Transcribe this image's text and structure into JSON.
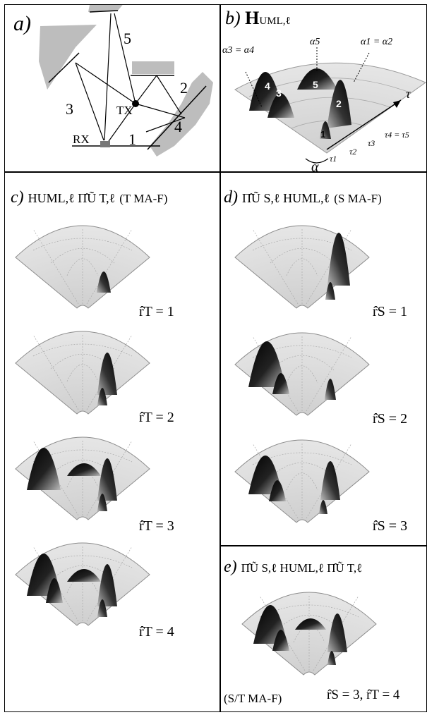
{
  "panel_a": {
    "tag": "a)",
    "tx_label": "TX",
    "rx_label": "RX",
    "path_labels": [
      "1",
      "2",
      "3",
      "4",
      "5"
    ]
  },
  "panel_b": {
    "tag": "b)",
    "title_main": "H",
    "title_sub": "UML,ℓ",
    "alpha34": "α3 = α4",
    "alpha5": "α5",
    "alpha12": "α1 = α2",
    "peak_numbers": [
      "1",
      "2",
      "3",
      "4",
      "5"
    ],
    "tau_axis": "τ",
    "alpha_axis": "α",
    "tau_ticks": [
      "τ1",
      "τ2",
      "τ3",
      "τ4 = τ5"
    ]
  },
  "panel_c": {
    "tag": "c)",
    "title": "HUML,ℓ Π̂Ũ T,ℓ",
    "mode": "(T MA-F)",
    "captions": [
      "r̂T = 1",
      "r̂T = 2",
      "r̂T = 3",
      "r̂T = 4"
    ]
  },
  "panel_d": {
    "tag": "d)",
    "title": "Π̂Ũ S,ℓ HUML,ℓ",
    "mode": "(S MA-F)",
    "captions": [
      "r̂S = 1",
      "r̂S = 2",
      "r̂S = 3"
    ]
  },
  "panel_e": {
    "tag": "e)",
    "title": "Π̂Ũ S,ℓ HUML,ℓ Π̂Ũ T,ℓ",
    "mode": "(S/T MA-F)",
    "caption": "r̂S = 3, r̂T = 4"
  },
  "colors": {
    "surface": "#dcdcdc",
    "peak": "#000000",
    "obstacle": "#bdbdbd"
  }
}
